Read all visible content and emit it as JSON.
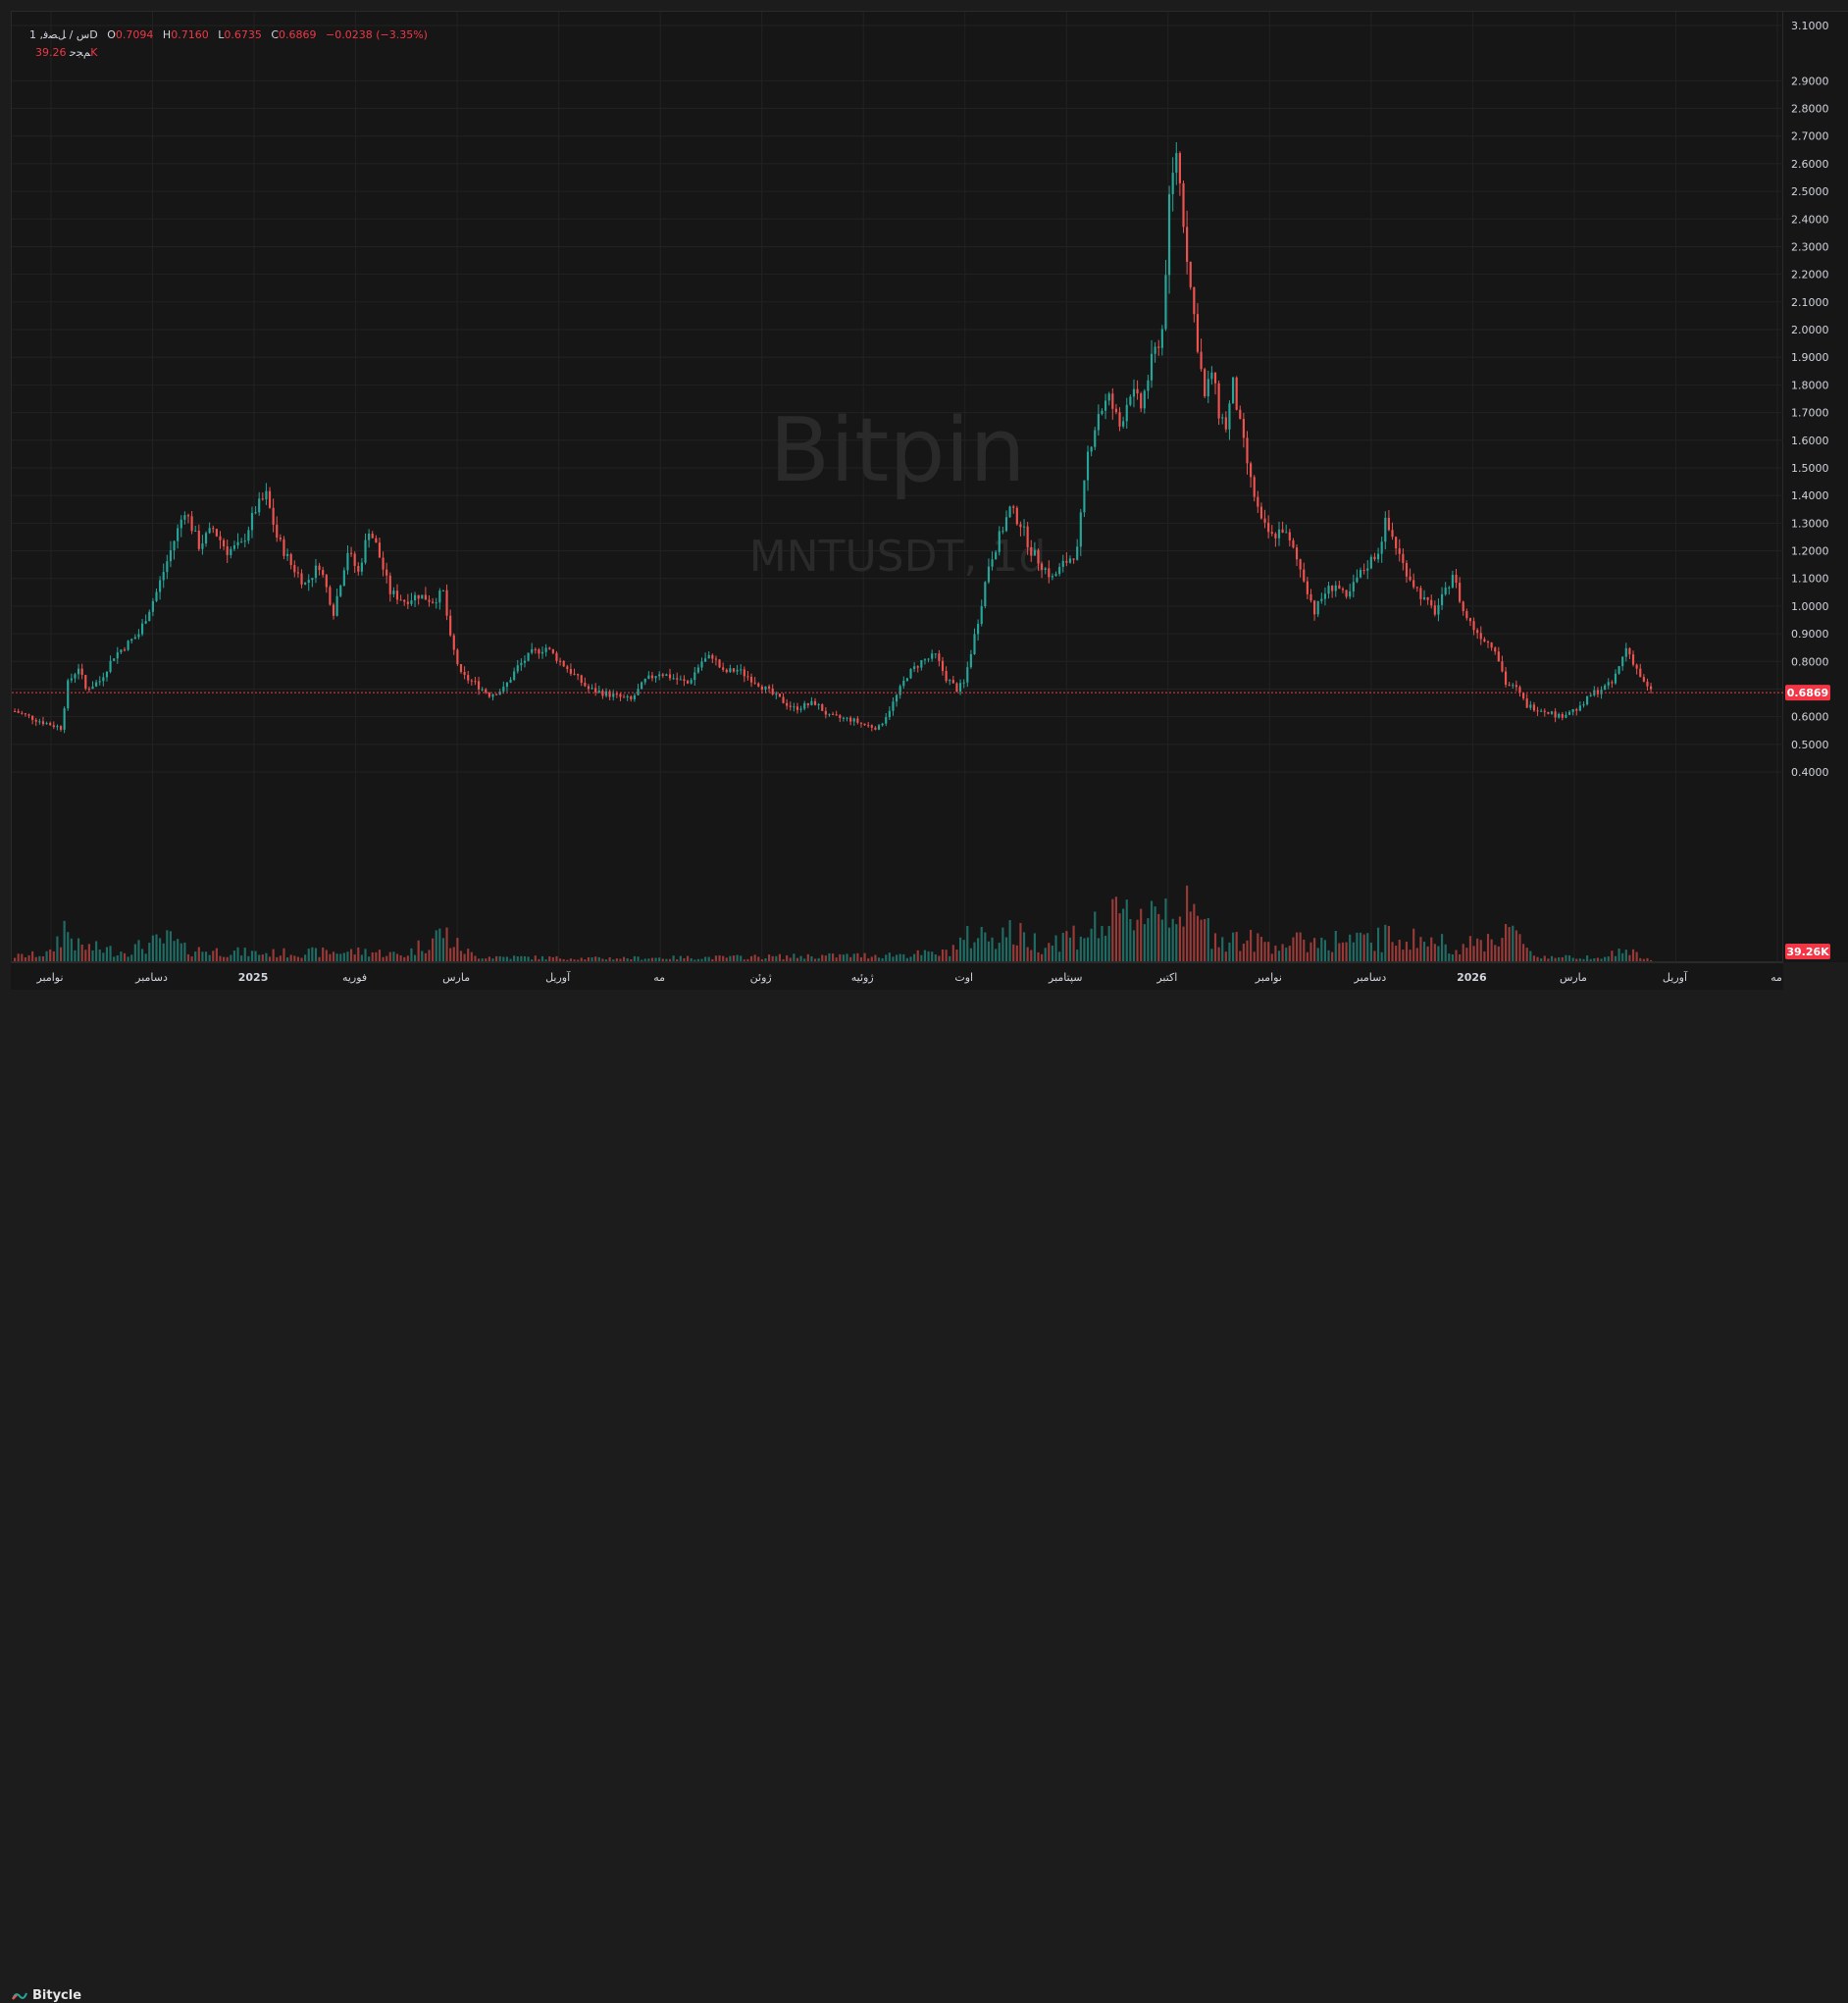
{
  "legend": {
    "interval": "1 ,ﺱ / ﻞﺼﻓD",
    "o_label": "O",
    "o_value": "0.7094",
    "h_label": "H",
    "h_value": "0.7160",
    "l_label": "L",
    "l_value": "0.6735",
    "c_label": "C",
    "c_value": "0.6869",
    "change": "−0.0238 (−3.35%)",
    "volume_label": "ﻢﺠﺣ",
    "volume_value": "39.26K"
  },
  "watermark": {
    "brand": "Bitpin",
    "symbol": "MNTUSDT, 1d"
  },
  "footer": {
    "brand": "Bitycle"
  },
  "colors": {
    "up": "#26a69a",
    "down": "#ef5350",
    "background": "#161616",
    "grid": "#222222",
    "text": "#d1d4dc",
    "last_price": "#f23645"
  },
  "chart_data": {
    "type": "candlestick",
    "ylim": [
      0.3,
      3.1
    ],
    "yticks": [
      "0.4000",
      "0.5000",
      "0.6000",
      "0.7000",
      "0.8000",
      "0.9000",
      "1.0000",
      "1.1000",
      "1.2000",
      "1.3000",
      "1.4000",
      "1.5000",
      "1.6000",
      "1.7000",
      "1.8000",
      "1.9000",
      "2.0000",
      "2.1000",
      "2.2000",
      "2.3000",
      "2.4000",
      "2.5000",
      "2.6000",
      "2.7000",
      "2.8000",
      "2.9000",
      "3.1000"
    ],
    "xticks": [
      "نوامبر",
      "دسامبر",
      "2025",
      "فوریه",
      "مارس",
      "آوریل",
      "مه",
      "ژوئن",
      "ژوئیه",
      "اوت",
      "سپتامبر",
      "اکتبر",
      "نوامبر",
      "دسامبر",
      "2026",
      "مارس",
      "آوریل",
      "مه"
    ],
    "last_price": "0.6869",
    "last_volume": "39.26K",
    "grid": true,
    "close_path": [
      [
        0,
        0.62
      ],
      [
        8,
        0.58
      ],
      [
        13,
        0.56
      ],
      [
        15,
        0.72
      ],
      [
        18,
        0.78
      ],
      [
        20,
        0.7
      ],
      [
        24,
        0.73
      ],
      [
        28,
        0.82
      ],
      [
        35,
        0.9
      ],
      [
        40,
        1.05
      ],
      [
        44,
        1.2
      ],
      [
        48,
        1.35
      ],
      [
        52,
        1.22
      ],
      [
        56,
        1.28
      ],
      [
        60,
        1.2
      ],
      [
        64,
        1.22
      ],
      [
        68,
        1.35
      ],
      [
        71,
        1.4
      ],
      [
        74,
        1.25
      ],
      [
        78,
        1.15
      ],
      [
        82,
        1.08
      ],
      [
        86,
        1.15
      ],
      [
        90,
        0.98
      ],
      [
        94,
        1.2
      ],
      [
        97,
        1.12
      ],
      [
        100,
        1.28
      ],
      [
        102,
        1.22
      ],
      [
        106,
        1.05
      ],
      [
        110,
        1.02
      ],
      [
        114,
        1.04
      ],
      [
        118,
        1.02
      ],
      [
        121,
        1.05
      ],
      [
        123,
        0.88
      ],
      [
        126,
        0.75
      ],
      [
        130,
        0.72
      ],
      [
        134,
        0.68
      ],
      [
        138,
        0.7
      ],
      [
        142,
        0.78
      ],
      [
        146,
        0.83
      ],
      [
        150,
        0.85
      ],
      [
        154,
        0.8
      ],
      [
        158,
        0.75
      ],
      [
        162,
        0.7
      ],
      [
        168,
        0.68
      ],
      [
        174,
        0.66
      ],
      [
        178,
        0.73
      ],
      [
        182,
        0.76
      ],
      [
        186,
        0.74
      ],
      [
        190,
        0.72
      ],
      [
        194,
        0.8
      ],
      [
        197,
        0.82
      ],
      [
        200,
        0.76
      ],
      [
        204,
        0.77
      ],
      [
        210,
        0.72
      ],
      [
        214,
        0.68
      ],
      [
        220,
        0.63
      ],
      [
        226,
        0.65
      ],
      [
        230,
        0.6
      ],
      [
        236,
        0.59
      ],
      [
        240,
        0.57
      ],
      [
        244,
        0.56
      ],
      [
        248,
        0.65
      ],
      [
        252,
        0.75
      ],
      [
        256,
        0.8
      ],
      [
        260,
        0.82
      ],
      [
        263,
        0.74
      ],
      [
        266,
        0.7
      ],
      [
        268,
        0.72
      ],
      [
        272,
        0.95
      ],
      [
        275,
        1.15
      ],
      [
        278,
        1.25
      ],
      [
        281,
        1.35
      ],
      [
        284,
        1.3
      ],
      [
        287,
        1.2
      ],
      [
        290,
        1.15
      ],
      [
        293,
        1.1
      ],
      [
        296,
        1.15
      ],
      [
        300,
        1.2
      ],
      [
        303,
        1.55
      ],
      [
        306,
        1.7
      ],
      [
        309,
        1.75
      ],
      [
        312,
        1.65
      ],
      [
        315,
        1.78
      ],
      [
        318,
        1.72
      ],
      [
        321,
        1.88
      ],
      [
        324,
        2.0
      ],
      [
        326,
        2.45
      ],
      [
        328,
        2.65
      ],
      [
        330,
        2.4
      ],
      [
        332,
        2.15
      ],
      [
        334,
        1.95
      ],
      [
        336,
        1.75
      ],
      [
        338,
        1.85
      ],
      [
        340,
        1.7
      ],
      [
        342,
        1.65
      ],
      [
        344,
        1.8
      ],
      [
        346,
        1.65
      ],
      [
        349,
        1.45
      ],
      [
        352,
        1.3
      ],
      [
        355,
        1.25
      ],
      [
        358,
        1.28
      ],
      [
        361,
        1.2
      ],
      [
        364,
        1.1
      ],
      [
        367,
        0.98
      ],
      [
        370,
        1.05
      ],
      [
        373,
        1.08
      ],
      [
        376,
        1.02
      ],
      [
        379,
        1.1
      ],
      [
        382,
        1.15
      ],
      [
        385,
        1.2
      ],
      [
        387,
        1.3
      ],
      [
        389,
        1.25
      ],
      [
        392,
        1.15
      ],
      [
        395,
        1.08
      ],
      [
        398,
        1.02
      ],
      [
        401,
        0.98
      ],
      [
        404,
        1.05
      ],
      [
        406,
        1.12
      ],
      [
        409,
        0.98
      ],
      [
        412,
        0.92
      ],
      [
        415,
        0.88
      ],
      [
        418,
        0.85
      ],
      [
        421,
        0.72
      ],
      [
        424,
        0.7
      ],
      [
        427,
        0.64
      ],
      [
        430,
        0.63
      ],
      [
        433,
        0.62
      ],
      [
        436,
        0.6
      ],
      [
        439,
        0.62
      ],
      [
        442,
        0.63
      ],
      [
        445,
        0.68
      ],
      [
        448,
        0.7
      ],
      [
        451,
        0.72
      ],
      [
        453,
        0.78
      ],
      [
        455,
        0.85
      ],
      [
        457,
        0.8
      ],
      [
        460,
        0.72
      ],
      [
        462,
        0.69
      ]
    ],
    "volume_path": [
      [
        0,
        5
      ],
      [
        10,
        8
      ],
      [
        14,
        35
      ],
      [
        18,
        15
      ],
      [
        30,
        10
      ],
      [
        44,
        22
      ],
      [
        48,
        12
      ],
      [
        70,
        8
      ],
      [
        100,
        10
      ],
      [
        110,
        6
      ],
      [
        121,
        30
      ],
      [
        124,
        18
      ],
      [
        130,
        5
      ],
      [
        160,
        3
      ],
      [
        200,
        4
      ],
      [
        240,
        6
      ],
      [
        262,
        8
      ],
      [
        270,
        25
      ],
      [
        280,
        30
      ],
      [
        290,
        18
      ],
      [
        300,
        28
      ],
      [
        310,
        40
      ],
      [
        320,
        55
      ],
      [
        328,
        60
      ],
      [
        332,
        45
      ],
      [
        340,
        25
      ],
      [
        350,
        20
      ],
      [
        360,
        18
      ],
      [
        370,
        22
      ],
      [
        380,
        20
      ],
      [
        390,
        25
      ],
      [
        400,
        20
      ],
      [
        410,
        15
      ],
      [
        418,
        25
      ],
      [
        421,
        35
      ],
      [
        425,
        20
      ],
      [
        430,
        5
      ],
      [
        440,
        4
      ],
      [
        450,
        6
      ],
      [
        455,
        12
      ],
      [
        460,
        3
      ],
      [
        462,
        1
      ]
    ]
  }
}
